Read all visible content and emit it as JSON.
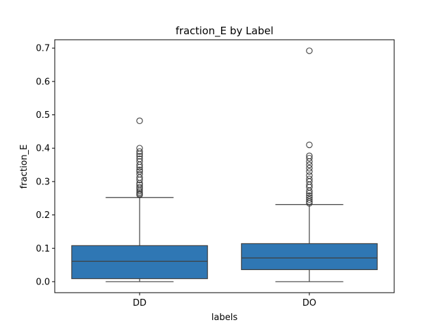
{
  "chart_data": {
    "type": "box",
    "title": "fraction_E by Label",
    "xlabel": "labels",
    "ylabel": "fraction_E",
    "ylim": [
      -0.033,
      0.725
    ],
    "yticks": [
      0.0,
      0.1,
      0.2,
      0.3,
      0.4,
      0.5,
      0.6,
      0.7
    ],
    "ytick_labels": [
      "0.0",
      "0.1",
      "0.2",
      "0.3",
      "0.4",
      "0.5",
      "0.6",
      "0.7"
    ],
    "categories": [
      "DD",
      "DO"
    ],
    "box_color": "#2f77b4",
    "line_color": "#3f3f3f",
    "grid": false,
    "boxes": [
      {
        "label": "DD",
        "whisker_low": 0.0,
        "q1": 0.009,
        "median": 0.061,
        "q3": 0.108,
        "whisker_high": 0.252,
        "outliers": [
          0.26,
          0.263,
          0.267,
          0.272,
          0.278,
          0.283,
          0.29,
          0.295,
          0.305,
          0.312,
          0.322,
          0.33,
          0.335,
          0.343,
          0.35,
          0.36,
          0.368,
          0.376,
          0.383,
          0.39,
          0.4,
          0.482
        ]
      },
      {
        "label": "DO",
        "whisker_low": 0.0,
        "q1": 0.036,
        "median": 0.071,
        "q3": 0.114,
        "whisker_high": 0.231,
        "outliers": [
          0.235,
          0.24,
          0.246,
          0.252,
          0.258,
          0.265,
          0.272,
          0.283,
          0.29,
          0.3,
          0.308,
          0.318,
          0.33,
          0.34,
          0.35,
          0.36,
          0.37,
          0.377,
          0.41,
          0.692
        ]
      }
    ]
  }
}
